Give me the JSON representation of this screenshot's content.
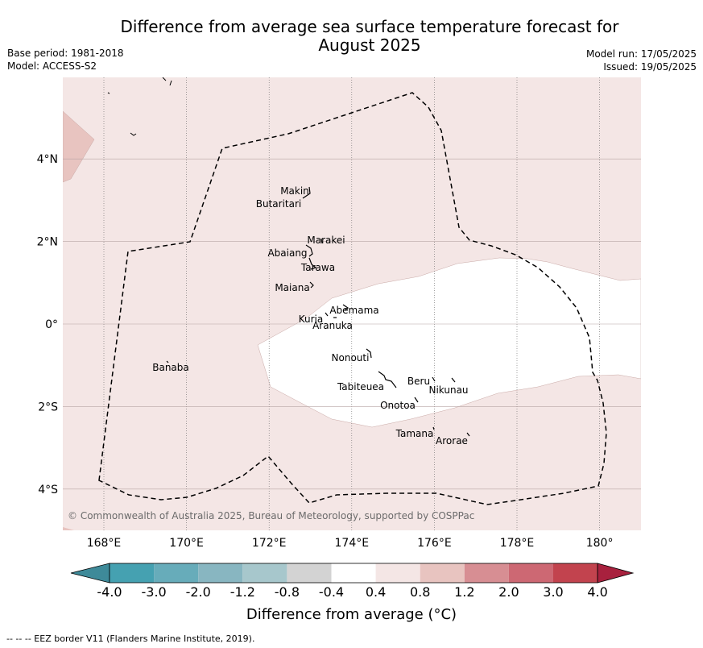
{
  "title": "Difference from average sea surface temperature forecast for August 2025",
  "title_line1": "Difference from average sea surface temperature forecast for",
  "title_line2": "August 2025",
  "base_period": "Base period: 1981-2018",
  "model": "Model: ACCESS-S2",
  "model_run": "Model run: 17/05/2025",
  "issued": "Issued: 19/05/2025",
  "copyright": "© Commonwealth of Australia 2025, Bureau of Meteorology, supported by COSPPac",
  "footer": "--  --  -- EEZ border V11 (Flanders Marine Institute, 2019).",
  "map": {
    "lon_range": [
      167,
      181
    ],
    "lat_range": [
      -5,
      6
    ],
    "lon_ticks": [
      {
        "value": 168,
        "label": "168°E"
      },
      {
        "value": 170,
        "label": "170°E"
      },
      {
        "value": 172,
        "label": "172°E"
      },
      {
        "value": 174,
        "label": "174°E"
      },
      {
        "value": 176,
        "label": "176°E"
      },
      {
        "value": 178,
        "label": "178°E"
      },
      {
        "value": 180,
        "label": "180°"
      }
    ],
    "lat_ticks": [
      {
        "value": 4,
        "label": "4°N"
      },
      {
        "value": 2,
        "label": "2°N"
      },
      {
        "value": 0,
        "label": "0°"
      },
      {
        "value": -2,
        "label": "2°S"
      },
      {
        "value": -4,
        "label": "4°S"
      }
    ],
    "background_category": "0.4 to 0.8",
    "islands": [
      {
        "name": "Makin",
        "lon": 173.0,
        "lat": 3.3
      },
      {
        "name": "Butaritari",
        "lon": 172.9,
        "lat": 3.1
      },
      {
        "name": "Marakei",
        "lon": 173.3,
        "lat": 2.0
      },
      {
        "name": "Abaiang",
        "lon": 172.95,
        "lat": 1.85
      },
      {
        "name": "Tarawa",
        "lon": 173.0,
        "lat": 1.45
      },
      {
        "name": "Maiana",
        "lon": 173.0,
        "lat": 0.95
      },
      {
        "name": "Abemama",
        "lon": 173.85,
        "lat": 0.45
      },
      {
        "name": "Kuria",
        "lon": 173.4,
        "lat": 0.2
      },
      {
        "name": "Aranuka",
        "lon": 173.6,
        "lat": 0.2
      },
      {
        "name": "Nonouti",
        "lon": 174.4,
        "lat": -0.65
      },
      {
        "name": "Tabiteuea",
        "lon": 174.9,
        "lat": -1.35
      },
      {
        "name": "Beru",
        "lon": 176.0,
        "lat": -1.35
      },
      {
        "name": "Nikunau",
        "lon": 176.45,
        "lat": -1.35
      },
      {
        "name": "Onotoa",
        "lon": 175.55,
        "lat": -1.85
      },
      {
        "name": "Tamana",
        "lon": 175.98,
        "lat": -2.5
      },
      {
        "name": "Arorae",
        "lon": 176.8,
        "lat": -2.65
      }
    ]
  },
  "colorbar": {
    "title": "Difference from average (°C)",
    "ticks": [
      "-4.0",
      "-3.0",
      "-2.0",
      "-1.2",
      "-0.8",
      "-0.4",
      "0.4",
      "0.8",
      "1.2",
      "2.0",
      "3.0",
      "4.0"
    ],
    "colors": [
      "#3e8a99",
      "#45a1b1",
      "#67acba",
      "#88b6c1",
      "#a7c7cc",
      "#d3d3d3",
      "#ffffff",
      "#f4e6e5",
      "#e8c4c0",
      "#d78e93",
      "#cd6873",
      "#c2434e",
      "#a8213e"
    ]
  }
}
